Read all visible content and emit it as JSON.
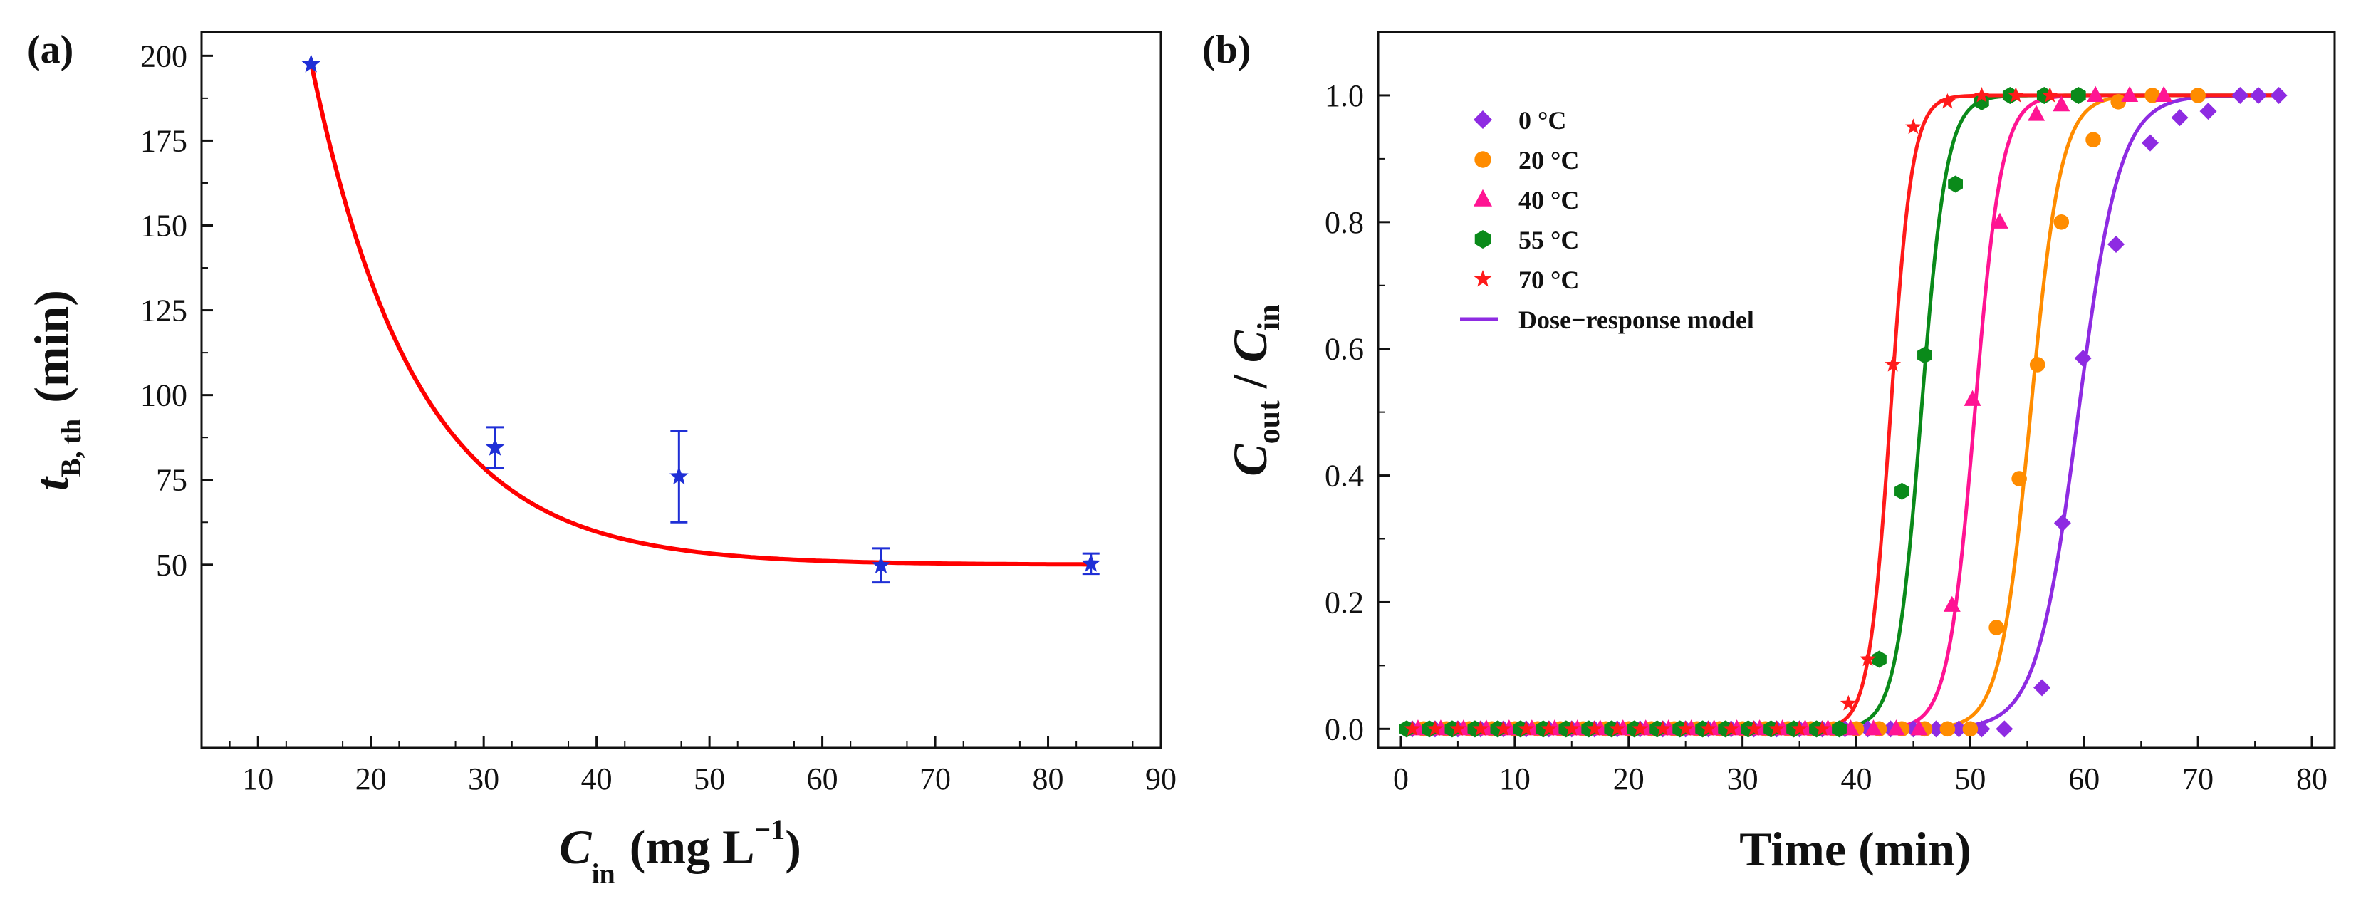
{
  "chart_data": [
    {
      "panel_label": "(a)",
      "type": "scatter",
      "xlabel": {
        "main": "C",
        "sub": "in",
        "units": "(mg L",
        "sup": "−1",
        "close": ")"
      },
      "ylabel": {
        "main": "t",
        "sub": "B, th",
        "units": "(min)"
      },
      "xlim": [
        5,
        90
      ],
      "ylim": [
        -4,
        207
      ],
      "xticks": [
        10,
        20,
        30,
        40,
        50,
        60,
        70,
        80,
        90
      ],
      "yticks": [
        50,
        75,
        100,
        125,
        150,
        175,
        200
      ],
      "points": [
        {
          "x": 14.7,
          "y": 197.5,
          "err": 0
        },
        {
          "x": 31.0,
          "y": 84.5,
          "err": 6
        },
        {
          "x": 47.3,
          "y": 76.0,
          "err": 13.5
        },
        {
          "x": 65.2,
          "y": 49.8,
          "err": 5
        },
        {
          "x": 83.8,
          "y": 50.3,
          "err": 3
        }
      ],
      "fit": {
        "type": "exponential decay",
        "y0": 50.0,
        "A": 148.0,
        "x0": 14.7,
        "tau": 9.3,
        "color": "#ff0000"
      },
      "marker_color": "#1f2fd6"
    },
    {
      "panel_label": "(b)",
      "type": "scatter",
      "xlabel": {
        "text": "Time (min)"
      },
      "ylabel": {
        "main1": "C",
        "sub1": "out",
        "sep": " / ",
        "main2": "C",
        "sub2": "in"
      },
      "xlim": [
        -2,
        82
      ],
      "ylim": [
        -0.03,
        1.1
      ],
      "xticks": [
        0,
        10,
        20,
        30,
        40,
        50,
        60,
        70,
        80
      ],
      "yticks": [
        0.0,
        0.2,
        0.4,
        0.6,
        0.8,
        1.0
      ],
      "ytick_labels": [
        "0.0",
        "0.2",
        "0.4",
        "0.6",
        "0.8",
        "1.0"
      ],
      "series": [
        {
          "name": "0 °C",
          "color": "#8e2be2",
          "marker": "diamond",
          "t50": 59.5,
          "k": 0.55,
          "x": [
            1,
            3,
            5,
            7,
            9,
            11,
            13,
            15,
            17,
            19,
            21,
            23,
            25,
            27,
            29,
            31,
            33,
            35,
            37,
            39,
            41,
            43,
            45,
            47,
            49,
            51,
            53,
            56.3,
            58.1,
            59.9,
            62.8,
            65.8,
            68.4,
            70.9,
            73.7,
            75.3,
            77.1
          ],
          "y": [
            0,
            0,
            0,
            0,
            0,
            0,
            0,
            0,
            0,
            0,
            0,
            0,
            0,
            0,
            0,
            0,
            0,
            0,
            0,
            0,
            0,
            0,
            0,
            0,
            0,
            0,
            0,
            0.065,
            0.325,
            0.585,
            0.765,
            0.925,
            0.965,
            0.975,
            1.0,
            1.0,
            1.0
          ]
        },
        {
          "name": "20 °C",
          "color": "#ff8c00",
          "marker": "circle",
          "t50": 55.3,
          "k": 0.75,
          "x": [
            2,
            4,
            6,
            8,
            10,
            12,
            14,
            16,
            18,
            20,
            22,
            24,
            26,
            28,
            30,
            32,
            34,
            36,
            38,
            40,
            42,
            44,
            46,
            48,
            50,
            52.3,
            54.3,
            55.9,
            58.0,
            60.8,
            63.0,
            66.0,
            70.0
          ],
          "y": [
            0,
            0,
            0,
            0,
            0,
            0,
            0,
            0,
            0,
            0,
            0,
            0,
            0,
            0,
            0,
            0,
            0,
            0,
            0,
            0,
            0,
            0,
            0,
            0,
            0,
            0.16,
            0.395,
            0.575,
            0.8,
            0.93,
            0.99,
            1.0,
            1.0
          ]
        },
        {
          "name": "40 °C",
          "color": "#ff1493",
          "marker": "triangle",
          "t50": 50.4,
          "k": 0.85,
          "x": [
            1.5,
            3.5,
            5.5,
            7.5,
            9.5,
            11.5,
            13.5,
            15.5,
            17.5,
            19.5,
            21.5,
            23.5,
            25.5,
            27.5,
            29.5,
            31.5,
            33.5,
            35.5,
            37.5,
            39.5,
            41.5,
            43.5,
            45.5,
            48.4,
            50.2,
            52.6,
            55.8,
            58.0,
            61.0,
            64.0,
            67.0
          ],
          "y": [
            0,
            0,
            0,
            0,
            0,
            0,
            0,
            0,
            0,
            0,
            0,
            0,
            0,
            0,
            0,
            0,
            0,
            0,
            0,
            0,
            0,
            0,
            0,
            0.195,
            0.52,
            0.8,
            0.97,
            0.985,
            1.0,
            1.0,
            1.0
          ]
        },
        {
          "name": "55 °C",
          "color": "#0a8a1a",
          "marker": "hexagon",
          "t50": 45.7,
          "k": 0.9,
          "x": [
            0.5,
            2.5,
            4.5,
            6.5,
            8.5,
            10.5,
            12.5,
            14.5,
            16.5,
            18.5,
            20.5,
            22.5,
            24.5,
            26.5,
            28.5,
            30.5,
            32.5,
            34.5,
            36.5,
            38.5,
            42.0,
            44.0,
            46.0,
            48.7,
            51.0,
            53.5,
            56.5,
            59.5
          ],
          "y": [
            0,
            0,
            0,
            0,
            0,
            0,
            0,
            0,
            0,
            0,
            0,
            0,
            0,
            0,
            0,
            0,
            0,
            0,
            0,
            0,
            0.11,
            0.375,
            0.59,
            0.86,
            0.99,
            1.0,
            1.0,
            1.0
          ]
        },
        {
          "name": "70 °C",
          "color": "#ff1a1a",
          "marker": "star",
          "t50": 43.0,
          "k": 1.05,
          "x": [
            1,
            3,
            5,
            7,
            9,
            11,
            13,
            15,
            17,
            19,
            21,
            23,
            25,
            27,
            29,
            31,
            33,
            35,
            37,
            39.3,
            41.0,
            43.2,
            45.0,
            48.0,
            51.0,
            54.0,
            57.0
          ],
          "y": [
            0,
            0,
            0,
            0,
            0,
            0,
            0,
            0,
            0,
            0,
            0,
            0,
            0,
            0,
            0,
            0,
            0,
            0,
            0,
            0.04,
            0.11,
            0.575,
            0.95,
            0.99,
            1.0,
            1.0,
            1.0
          ]
        }
      ],
      "fit_legend": {
        "name": "Dose−response model",
        "color": "#8e2be2"
      }
    }
  ]
}
